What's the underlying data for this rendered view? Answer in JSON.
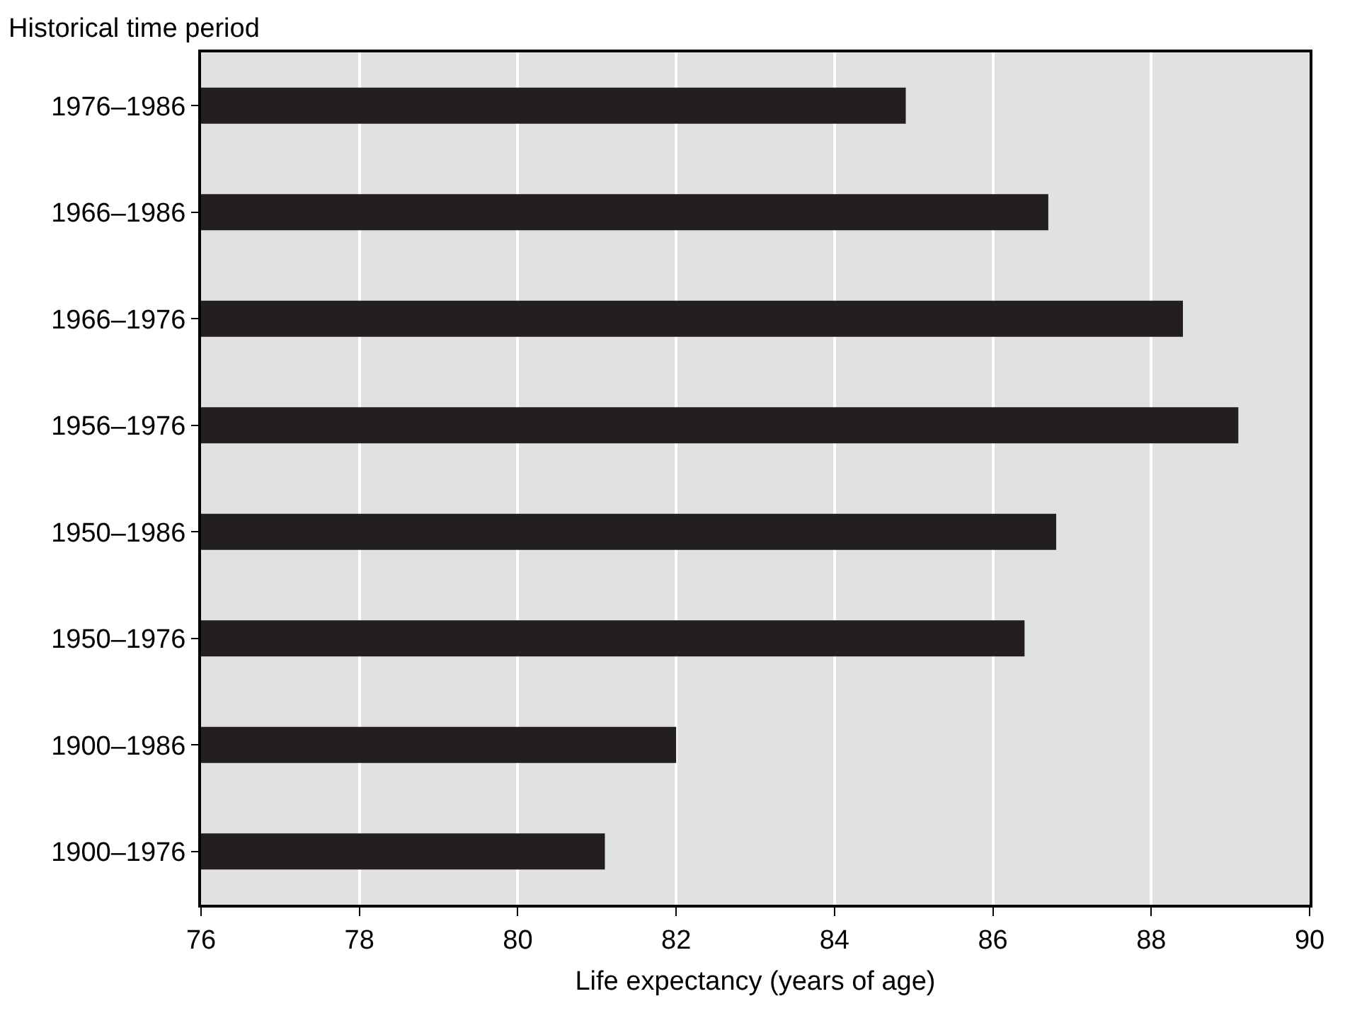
{
  "chart_data": {
    "type": "bar",
    "orientation": "horizontal",
    "ylabel": "Historical time period",
    "xlabel": "Life expectancy (years of age)",
    "categories": [
      "1976–1986",
      "1966–1986",
      "1966–1976",
      "1956–1976",
      "1950–1986",
      "1950–1976",
      "1900–1986",
      "1900–1976"
    ],
    "values": [
      84.9,
      86.7,
      88.4,
      89.1,
      86.8,
      86.4,
      82.0,
      81.1
    ],
    "color": "#231f20",
    "xlim": [
      76,
      90
    ],
    "xticks": [
      76,
      78,
      80,
      82,
      84,
      86,
      88,
      90
    ],
    "grid": "x",
    "legend": false
  }
}
